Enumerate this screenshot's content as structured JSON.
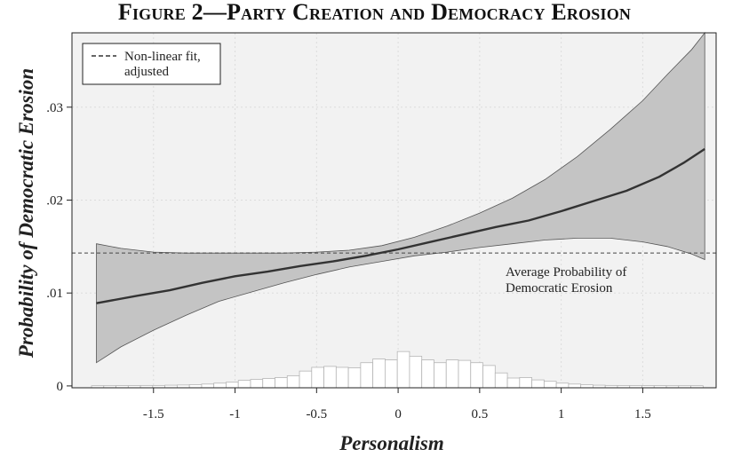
{
  "title": "Figure 2—Party Creation and Democracy Erosion",
  "chart_data": {
    "type": "line",
    "xlabel": "Personalism",
    "ylabel": "Probability of Democratic Erosion",
    "xlim": [
      -2.0,
      1.95
    ],
    "ylim": [
      -0.0002,
      0.038
    ],
    "x_ticks": [
      -1.5,
      -1,
      -0.5,
      0,
      0.5,
      1,
      1.5
    ],
    "x_tick_labels": [
      "-1.5",
      "-1",
      "-0.5",
      "0",
      "0.5",
      "1",
      "1.5"
    ],
    "y_ticks": [
      0,
      0.01,
      0.02,
      0.03
    ],
    "y_tick_labels": [
      "0",
      ".01",
      ".02",
      ".03"
    ],
    "grid": true,
    "legend": {
      "position": "top-left",
      "entries": [
        "Non-linear fit,",
        "adjusted"
      ]
    },
    "series": [
      {
        "name": "Non-linear fit, adjusted",
        "style": "line",
        "x": [
          -1.85,
          -1.6,
          -1.4,
          -1.2,
          -1.0,
          -0.8,
          -0.6,
          -0.4,
          -0.2,
          0.0,
          0.2,
          0.4,
          0.6,
          0.8,
          1.0,
          1.2,
          1.4,
          1.6,
          1.75,
          1.88
        ],
        "y": [
          0.0089,
          0.0097,
          0.0103,
          0.0111,
          0.0118,
          0.0123,
          0.0129,
          0.0134,
          0.014,
          0.0147,
          0.0155,
          0.0163,
          0.0171,
          0.0178,
          0.0188,
          0.0199,
          0.021,
          0.0225,
          0.024,
          0.0255
        ]
      }
    ],
    "ci_band": {
      "x": [
        -1.85,
        -1.7,
        -1.5,
        -1.3,
        -1.1,
        -0.9,
        -0.7,
        -0.5,
        -0.3,
        -0.1,
        0.1,
        0.3,
        0.5,
        0.7,
        0.9,
        1.1,
        1.3,
        1.5,
        1.65,
        1.8,
        1.88
      ],
      "upper": [
        0.0153,
        0.0148,
        0.0144,
        0.0143,
        0.0143,
        0.0143,
        0.0143,
        0.0144,
        0.0146,
        0.0151,
        0.016,
        0.0172,
        0.0186,
        0.0202,
        0.0222,
        0.0247,
        0.0276,
        0.0307,
        0.0335,
        0.0362,
        0.038
      ],
      "lower": [
        0.0025,
        0.0042,
        0.006,
        0.0076,
        0.0091,
        0.0101,
        0.0111,
        0.012,
        0.0128,
        0.0134,
        0.014,
        0.0144,
        0.0149,
        0.0153,
        0.0157,
        0.0159,
        0.0159,
        0.0155,
        0.015,
        0.0142,
        0.0136
      ]
    },
    "reference_line": {
      "y": 0.0143,
      "label_line1": "Average Probability of",
      "label_line2": "Democratic Erosion"
    },
    "histogram": {
      "bin_width": 0.075,
      "bins_start": [
        -1.88,
        -1.805,
        -1.73,
        -1.655,
        -1.58,
        -1.505,
        -1.43,
        -1.355,
        -1.28,
        -1.205,
        -1.13,
        -1.055,
        -0.98,
        -0.905,
        -0.83,
        -0.755,
        -0.68,
        -0.605,
        -0.53,
        -0.455,
        -0.38,
        -0.305,
        -0.23,
        -0.155,
        -0.08,
        -0.005,
        0.07,
        0.145,
        0.22,
        0.295,
        0.37,
        0.445,
        0.52,
        0.595,
        0.67,
        0.745,
        0.82,
        0.895,
        0.97,
        1.045,
        1.12,
        1.195,
        1.27,
        1.345,
        1.42,
        1.495,
        1.57,
        1.645,
        1.72,
        1.795
      ],
      "heights": [
        2e-05,
        2e-05,
        3e-05,
        3e-05,
        5e-05,
        5e-05,
        8e-05,
        0.0001,
        0.00014,
        0.0002,
        0.0003,
        0.0004,
        0.0006,
        0.0007,
        0.0008,
        0.0009,
        0.0011,
        0.0016,
        0.002,
        0.0021,
        0.002,
        0.00195,
        0.0025,
        0.0029,
        0.0028,
        0.0037,
        0.0032,
        0.0028,
        0.0025,
        0.0028,
        0.00275,
        0.0025,
        0.0022,
        0.0014,
        0.00085,
        0.0009,
        0.00065,
        0.0005,
        0.0003,
        0.0002,
        0.00012,
        8e-05,
        5e-05,
        4e-05,
        4e-05,
        3e-05,
        3e-05,
        2e-05,
        2e-05,
        2e-05
      ]
    }
  },
  "colors": {
    "plot_bg": "#f2f2f2",
    "band_fill": "#c4c4c4",
    "fit_line": "#333333",
    "hist_fill": "#ffffff",
    "hist_stroke": "#b5b5b5",
    "grid": "#dcdcdc"
  }
}
